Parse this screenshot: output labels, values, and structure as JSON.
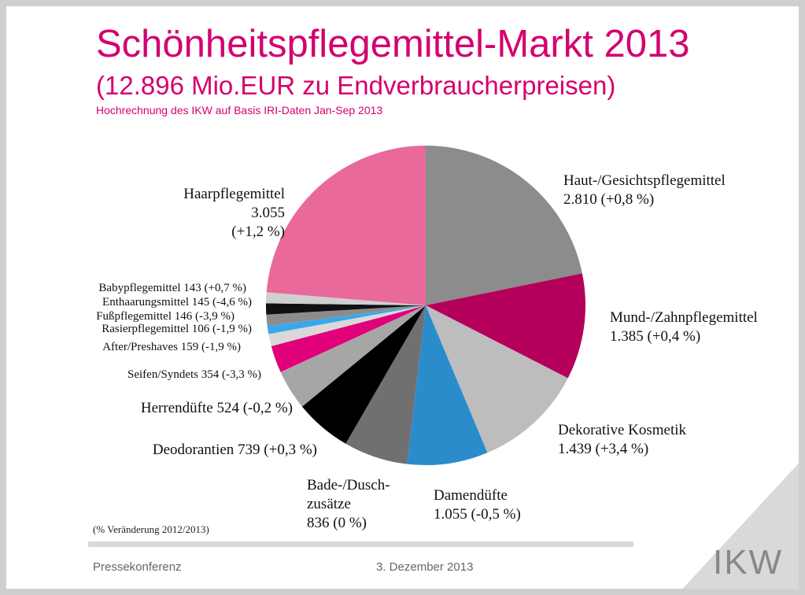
{
  "chart_data": {
    "type": "pie",
    "title": "Schönheitspflegemittel-Markt 2013",
    "subtitle": "(12.896 Mio.EUR zu Endverbraucherpreisen)",
    "source": "Hochrechnung des IKW auf Basis IRI-Daten Jan-Sep 2013",
    "note": "(% Veränderung 2012/2013)",
    "categories": [
      "Haut-/Gesichtspflegemittel",
      "Mund-/Zahnpflegemittel",
      "Dekorative Kosmetik",
      "Damendüfte",
      "Bade-/Dusch-zusätze",
      "Deodorantien",
      "Herrendüfte",
      "Seifen/Syndets",
      "After/Preshaves",
      "Rasierpflegemittel",
      "Fußpflegemittel",
      "Enthaarungsmittel",
      "Babypflegemittel",
      "Haarpflegemittel"
    ],
    "values": [
      2810,
      1385,
      1439,
      1055,
      836,
      739,
      524,
      354,
      159,
      106,
      146,
      145,
      143,
      3055
    ],
    "value_labels": [
      "2.810",
      "1.385",
      "1.439",
      "1.055",
      "836",
      "739",
      "524",
      "354",
      "159",
      "106",
      "146",
      "145",
      "143",
      "3.055"
    ],
    "changes": [
      "(+0,8 %)",
      "(+0,4 %)",
      "(+3,4 %)",
      "(-0,5 %)",
      "(0 %)",
      "(+0,3 %)",
      "(-0,2 %)",
      "(-3,3 %)",
      "(-1,9 %)",
      "(-1,9 %)",
      "(-3,9 %)",
      "(-4,6 %)",
      "(+0,7 %)",
      "(+1,2 %)"
    ],
    "colors": [
      "#8c8c8c",
      "#b5005b",
      "#bdbdbd",
      "#2b8ccc",
      "#707070",
      "#000000",
      "#a6a6a6",
      "#e0007a",
      "#d9d9d9",
      "#3aa8e8",
      "#8c8c8c",
      "#111111",
      "#cfcfcf",
      "#e8699a"
    ]
  },
  "footer": {
    "left": "Pressekonferenz",
    "date": "3. Dezember 2013",
    "logo": "IKW"
  }
}
